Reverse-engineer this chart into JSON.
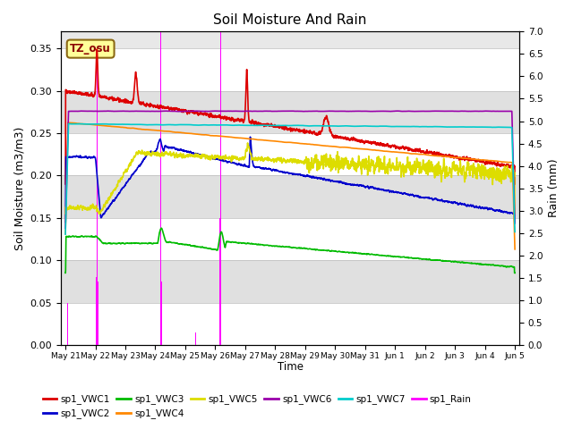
{
  "title": "Soil Moisture And Rain",
  "xlabel": "Time",
  "ylabel_left": "Soil Moisture (m3/m3)",
  "ylabel_right": "Rain (mm)",
  "annotation": "TZ_osu",
  "ylim_left": [
    0.0,
    0.37
  ],
  "ylim_right": [
    0.0,
    7.0
  ],
  "yticks_left": [
    0.0,
    0.05,
    0.1,
    0.15,
    0.2,
    0.25,
    0.3,
    0.35
  ],
  "yticks_right": [
    0.0,
    0.5,
    1.0,
    1.5,
    2.0,
    2.5,
    3.0,
    3.5,
    4.0,
    4.5,
    5.0,
    5.5,
    6.0,
    6.5,
    7.0
  ],
  "colors": {
    "VWC1": "#dd0000",
    "VWC2": "#0000cc",
    "VWC3": "#00bb00",
    "VWC4": "#ff8800",
    "VWC5": "#dddd00",
    "VWC6": "#9900aa",
    "VWC7": "#00cccc",
    "Rain": "#ff00ff"
  },
  "background_bands": [
    "#ffffff",
    "#e0e0e0"
  ],
  "xtick_labels": [
    "May 21",
    "May 22",
    "May 23",
    "May 24",
    "May 25",
    "May 26",
    "May 27",
    "May 28",
    "May 29",
    "May 30",
    "May 31",
    "Jun 1",
    "Jun 2",
    "Jun 3",
    "Jun 4",
    "Jun 5"
  ],
  "legend_row1": [
    "sp1_VWC1",
    "sp1_VWC2",
    "sp1_VWC3",
    "sp1_VWC4",
    "sp1_VWC5",
    "sp1_VWC6"
  ],
  "legend_row2": [
    "sp1_VWC7",
    "sp1_Rain"
  ]
}
